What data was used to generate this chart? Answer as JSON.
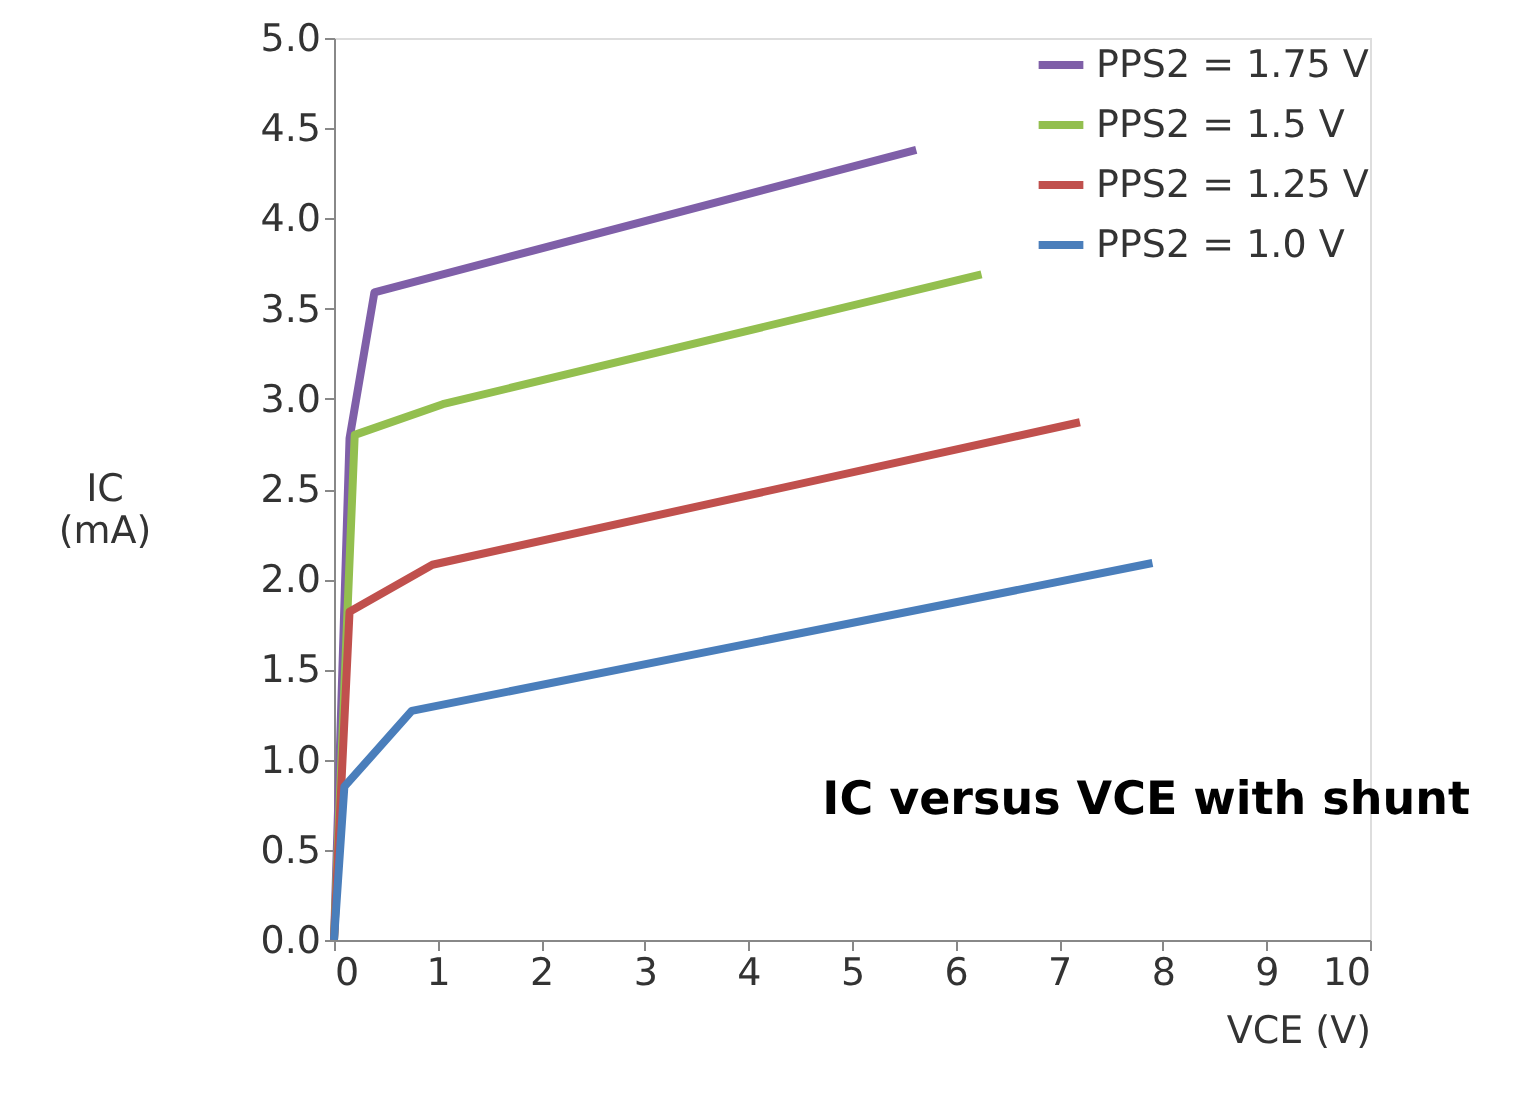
{
  "chart_data": {
    "type": "line",
    "title": "IC versus VCE with shunt",
    "xlabel": "VCE (V)",
    "ylabel": "IC (mA)",
    "xlim": [
      0,
      10
    ],
    "xticks": [
      0,
      1,
      2,
      3,
      4,
      5,
      6,
      7,
      8,
      9,
      10
    ],
    "ylim": [
      0,
      5
    ],
    "yticks": [
      {
        "value": 0,
        "label": "0.0"
      },
      {
        "value": 0.5,
        "label": "0.5"
      },
      {
        "value": 1,
        "label": "1.0"
      },
      {
        "value": 1.5,
        "label": "1.5"
      },
      {
        "value": 2,
        "label": "2.0"
      },
      {
        "value": 2.5,
        "label": "2.5"
      },
      {
        "value": 3,
        "label": "3.0"
      },
      {
        "value": 3.5,
        "label": "3.5"
      },
      {
        "value": 4,
        "label": "4.0"
      },
      {
        "value": 4.5,
        "label": "4.5"
      },
      {
        "value": 5,
        "label": "5.0"
      }
    ],
    "grid": false,
    "legend": "top right",
    "marker": "none",
    "line_style": "solid",
    "series": [
      {
        "name": "PPS2 = 1.75 V",
        "color": "#7f5fa8",
        "x": [
          0,
          0.15,
          0.39,
          5.62
        ],
        "values": [
          0,
          2.78,
          3.59,
          4.38
        ]
      },
      {
        "name": "PPS2 = 1.5 V",
        "color": "#93bf4f",
        "x": [
          0,
          0.2,
          1.05,
          6.25
        ],
        "values": [
          0,
          2.8,
          2.97,
          3.69
        ]
      },
      {
        "name": "PPS2 = 1.25 V",
        "color": "#c0504d",
        "x": [
          0,
          0.15,
          0.95,
          7.2
        ],
        "values": [
          0,
          1.82,
          2.08,
          2.87
        ]
      },
      {
        "name": "PPS2 = 1.0 V",
        "color": "#4a7ebb",
        "x": [
          0,
          0.1,
          0.75,
          7.9
        ],
        "values": [
          0,
          0.85,
          1.27,
          2.09
        ]
      }
    ]
  }
}
